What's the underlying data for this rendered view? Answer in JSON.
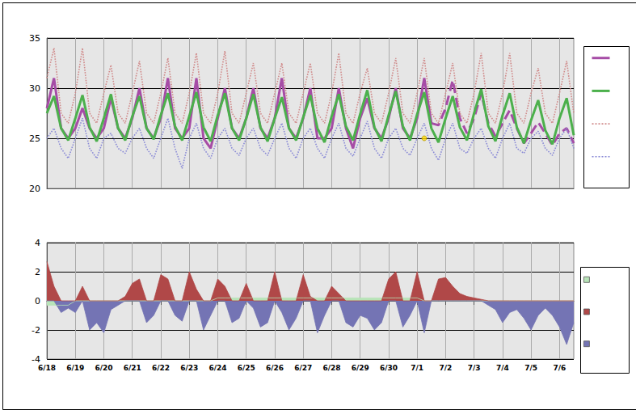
{
  "chart_data": [
    {
      "type": "line",
      "categories": [
        "6/18",
        null,
        null,
        null,
        "6/19",
        null,
        null,
        null,
        "6/20",
        null,
        null,
        null,
        "6/21",
        null,
        null,
        null,
        "6/22",
        null,
        null,
        null,
        "6/23",
        null,
        null,
        null,
        "6/24",
        null,
        null,
        null,
        "6/25",
        null,
        null,
        null,
        "6/26",
        null,
        null,
        null,
        "6/27",
        null,
        null,
        null,
        "6/28",
        null,
        null,
        null,
        "6/29",
        null,
        null,
        null,
        "6/30",
        null,
        null,
        null,
        "7/1",
        null,
        null,
        null,
        "7/2",
        null,
        null,
        null,
        "7/3",
        null,
        null,
        null,
        "7/4",
        null,
        null,
        null,
        "7/5",
        null,
        null,
        null,
        "7/6",
        null,
        null
      ],
      "ylim": [
        20,
        35
      ],
      "yticks": [
        20,
        25,
        30,
        35
      ],
      "grid": true,
      "tick_labels": "y",
      "series": [
        {
          "color": "#a64ca6",
          "line_style": "solid",
          "values": [
            28,
            31,
            26,
            25,
            26,
            28,
            26,
            25,
            26,
            29,
            26,
            25,
            27,
            30,
            26,
            25,
            27,
            31,
            26,
            25,
            26,
            31,
            25,
            24,
            27,
            30,
            26,
            25,
            27,
            30,
            26,
            25,
            27,
            31,
            26,
            25,
            27,
            30,
            25,
            25,
            26,
            30,
            26,
            24,
            27,
            29,
            26,
            25,
            27,
            30,
            26,
            25,
            27,
            31,
            26.5,
            null,
            null,
            null,
            null,
            null,
            null,
            null,
            null,
            null,
            null,
            null,
            null,
            null,
            null,
            null,
            null,
            null,
            null,
            null,
            null
          ]
        },
        {
          "color": "#a64ca6",
          "line_style": "dashed",
          "values": [
            null,
            null,
            null,
            null,
            null,
            null,
            null,
            null,
            null,
            null,
            null,
            null,
            null,
            null,
            null,
            null,
            null,
            null,
            null,
            null,
            null,
            null,
            null,
            null,
            null,
            null,
            null,
            null,
            null,
            null,
            null,
            null,
            null,
            null,
            null,
            null,
            null,
            null,
            null,
            null,
            null,
            null,
            null,
            null,
            null,
            null,
            null,
            null,
            null,
            null,
            null,
            null,
            null,
            null,
            26.5,
            26.3,
            28,
            30.8,
            27,
            25.5,
            27,
            29.5,
            26.5,
            25.2,
            26.5,
            27.8,
            26,
            24.5,
            25.5,
            26.6,
            25.5,
            24.3,
            25.5,
            26,
            24.5
          ]
        },
        {
          "color": "#4cb04c",
          "line_style": "solid",
          "values": [
            27.5,
            29.2,
            26.0,
            24.8,
            27.0,
            29.3,
            26.1,
            24.7,
            27.0,
            29.4,
            26.0,
            24.8,
            27.2,
            29.2,
            26.0,
            24.9,
            27.3,
            29.5,
            26.2,
            24.8,
            27.2,
            29.6,
            26.1,
            24.7,
            27.3,
            29.5,
            26.0,
            24.8,
            27.0,
            29.4,
            26.1,
            24.7,
            27.0,
            29.1,
            26.0,
            24.8,
            27.1,
            29.3,
            26.0,
            24.6,
            27.2,
            29.4,
            26.2,
            24.8,
            27.4,
            29.8,
            26.1,
            24.7,
            27.3,
            29.7,
            26.2,
            24.8,
            27.4,
            29.6,
            26.0,
            24.6,
            27.0,
            29.2,
            26.1,
            24.8,
            27.5,
            29.9,
            26.2,
            24.7,
            27.3,
            29.5,
            26.1,
            24.5,
            26.8,
            28.8,
            25.8,
            24.4,
            27.0,
            29.0,
            25.3
          ]
        },
        {
          "color": "#d08a8a",
          "line_style": "dotted",
          "values": [
            31,
            34,
            27.5,
            26.5,
            29.5,
            34,
            27.5,
            26.5,
            29.5,
            32.3,
            27.5,
            26.5,
            29.5,
            32.7,
            27.5,
            26.5,
            29.5,
            33,
            27.5,
            26.5,
            29.5,
            33.5,
            27.5,
            26.5,
            29.5,
            33.7,
            27.5,
            26.5,
            29.5,
            32.5,
            27.5,
            26.5,
            29.5,
            32.5,
            27.5,
            26.5,
            29.5,
            32.5,
            27.5,
            26.5,
            29.5,
            33.5,
            27.5,
            26.5,
            29.5,
            32,
            27.5,
            26.5,
            29.5,
            33,
            27.5,
            26.5,
            29.5,
            33,
            27.5,
            26.5,
            29.5,
            32.5,
            27.5,
            26.5,
            29.5,
            33.5,
            27.5,
            26.5,
            29.5,
            33.5,
            27.5,
            26.5,
            29.5,
            32,
            27.5,
            26.5,
            29.5,
            32.7,
            27.5
          ]
        },
        {
          "color": "#8a8ad6",
          "line_style": "dotted",
          "values": [
            25,
            26,
            24,
            23,
            25,
            27,
            24,
            23,
            25,
            25.5,
            24,
            23.5,
            25,
            26,
            24,
            23,
            25,
            27,
            24,
            22,
            25,
            26.5,
            24,
            23,
            25,
            26,
            24,
            23.3,
            25,
            26,
            24,
            23.3,
            25,
            26.5,
            24,
            23,
            25,
            26,
            24,
            23,
            25,
            26.5,
            24,
            23.2,
            25,
            26.7,
            24,
            23,
            25,
            26,
            24,
            23.3,
            25,
            26.5,
            24,
            22.8,
            25,
            26.5,
            24,
            23.5,
            25,
            26,
            24,
            23,
            25,
            26.5,
            24,
            23.5,
            25,
            25.7,
            24,
            23.3,
            25,
            26,
            24
          ]
        },
        {
          "type": "scatter",
          "color": "#ffd700",
          "marker": "circle",
          "values": [
            null,
            null,
            null,
            null,
            null,
            null,
            null,
            null,
            null,
            null,
            null,
            null,
            null,
            null,
            null,
            null,
            null,
            null,
            null,
            null,
            null,
            null,
            null,
            null,
            null,
            null,
            null,
            null,
            null,
            null,
            null,
            null,
            null,
            null,
            null,
            null,
            null,
            null,
            null,
            null,
            null,
            null,
            null,
            null,
            null,
            null,
            null,
            null,
            null,
            null,
            null,
            null,
            null,
            25,
            null,
            null,
            null,
            null,
            null,
            null,
            null,
            null,
            null,
            null,
            null,
            null,
            null,
            null,
            null,
            null,
            null,
            null,
            null,
            null,
            null
          ]
        }
      ]
    },
    {
      "type": "area",
      "categories": [
        "6/18",
        null,
        null,
        null,
        "6/19",
        null,
        null,
        null,
        "6/20",
        null,
        null,
        null,
        "6/21",
        null,
        null,
        null,
        "6/22",
        null,
        null,
        null,
        "6/23",
        null,
        null,
        null,
        "6/24",
        null,
        null,
        null,
        "6/25",
        null,
        null,
        null,
        "6/26",
        null,
        null,
        null,
        "6/27",
        null,
        null,
        null,
        "6/28",
        null,
        null,
        null,
        "6/29",
        null,
        null,
        null,
        "6/30",
        null,
        null,
        null,
        "7/1",
        null,
        null,
        null,
        "7/2",
        null,
        null,
        null,
        "7/3",
        null,
        null,
        null,
        "7/4",
        null,
        null,
        null,
        "7/5",
        null,
        null,
        null,
        "7/6",
        null,
        null
      ],
      "ylim": [
        -4,
        4
      ],
      "yticks": [
        -4,
        -2,
        0,
        2,
        4
      ],
      "grid": true,
      "series": [
        {
          "color": "#b8e4b8",
          "values": [
            -0.3,
            -0.3,
            -0.3,
            -0.3,
            0,
            0,
            0,
            0,
            0,
            0,
            0,
            0,
            0,
            0,
            0,
            0,
            0,
            0,
            0,
            0,
            0,
            0,
            0,
            0,
            0.2,
            0.2,
            0.2,
            0.2,
            0.2,
            0.2,
            0.2,
            0.2,
            0.2,
            0.2,
            0.2,
            0.2,
            0.2,
            0.2,
            0.2,
            0.2,
            0.2,
            0.2,
            0.2,
            0.2,
            0.2,
            0.2,
            0.2,
            0.2,
            0.2,
            0.2,
            0.2,
            0.2,
            0.2,
            0,
            0,
            0,
            0,
            0,
            0,
            0,
            0,
            0,
            0,
            0,
            0,
            0,
            0,
            0,
            0,
            0,
            0,
            0,
            0,
            0,
            0
          ]
        },
        {
          "color": "#b04848",
          "values": [
            2.7,
            1.0,
            0,
            0,
            0,
            1.0,
            0,
            0,
            0,
            0,
            0,
            0.3,
            1.2,
            1.5,
            0,
            0,
            1.8,
            1.5,
            0,
            0,
            2.0,
            0.8,
            0,
            0,
            1.5,
            1.0,
            0,
            0,
            1.2,
            0,
            0,
            0,
            2.0,
            0,
            0,
            0,
            1.8,
            0.3,
            0,
            0,
            1.0,
            0.5,
            0,
            0,
            0,
            0,
            0,
            0,
            1.5,
            2.0,
            0,
            0,
            2.0,
            0,
            0,
            1.5,
            1.6,
            1.0,
            0.5,
            0.3,
            0.2,
            0.1,
            0,
            0,
            0,
            0,
            0,
            0,
            0,
            0,
            0,
            0,
            0,
            0,
            0
          ]
        },
        {
          "color": "#7474b4",
          "values": [
            0,
            0,
            -0.8,
            -0.5,
            -0.8,
            0,
            -2.0,
            -1.5,
            -2.2,
            -0.6,
            -0.3,
            0,
            0,
            0,
            -1.5,
            -1.0,
            0,
            0,
            -1.0,
            -1.4,
            0,
            0,
            -2.0,
            -1.0,
            0,
            0,
            -1.5,
            -1.2,
            0,
            -0.5,
            -1.8,
            -1.5,
            0,
            -0.8,
            -2.0,
            -1.2,
            0,
            0,
            -2.2,
            -1.0,
            0,
            0,
            -1.5,
            -1.8,
            -1.0,
            -1.2,
            -2.0,
            -1.5,
            0,
            0,
            -1.8,
            -1.0,
            0,
            -2.2,
            0,
            0,
            0,
            0,
            0,
            0,
            0,
            0,
            -0.3,
            -0.6,
            -1.5,
            -0.8,
            -0.6,
            -1.2,
            -2.0,
            -1.0,
            -0.5,
            -1.0,
            -1.8,
            -3.0,
            -1.5
          ]
        }
      ]
    }
  ]
}
